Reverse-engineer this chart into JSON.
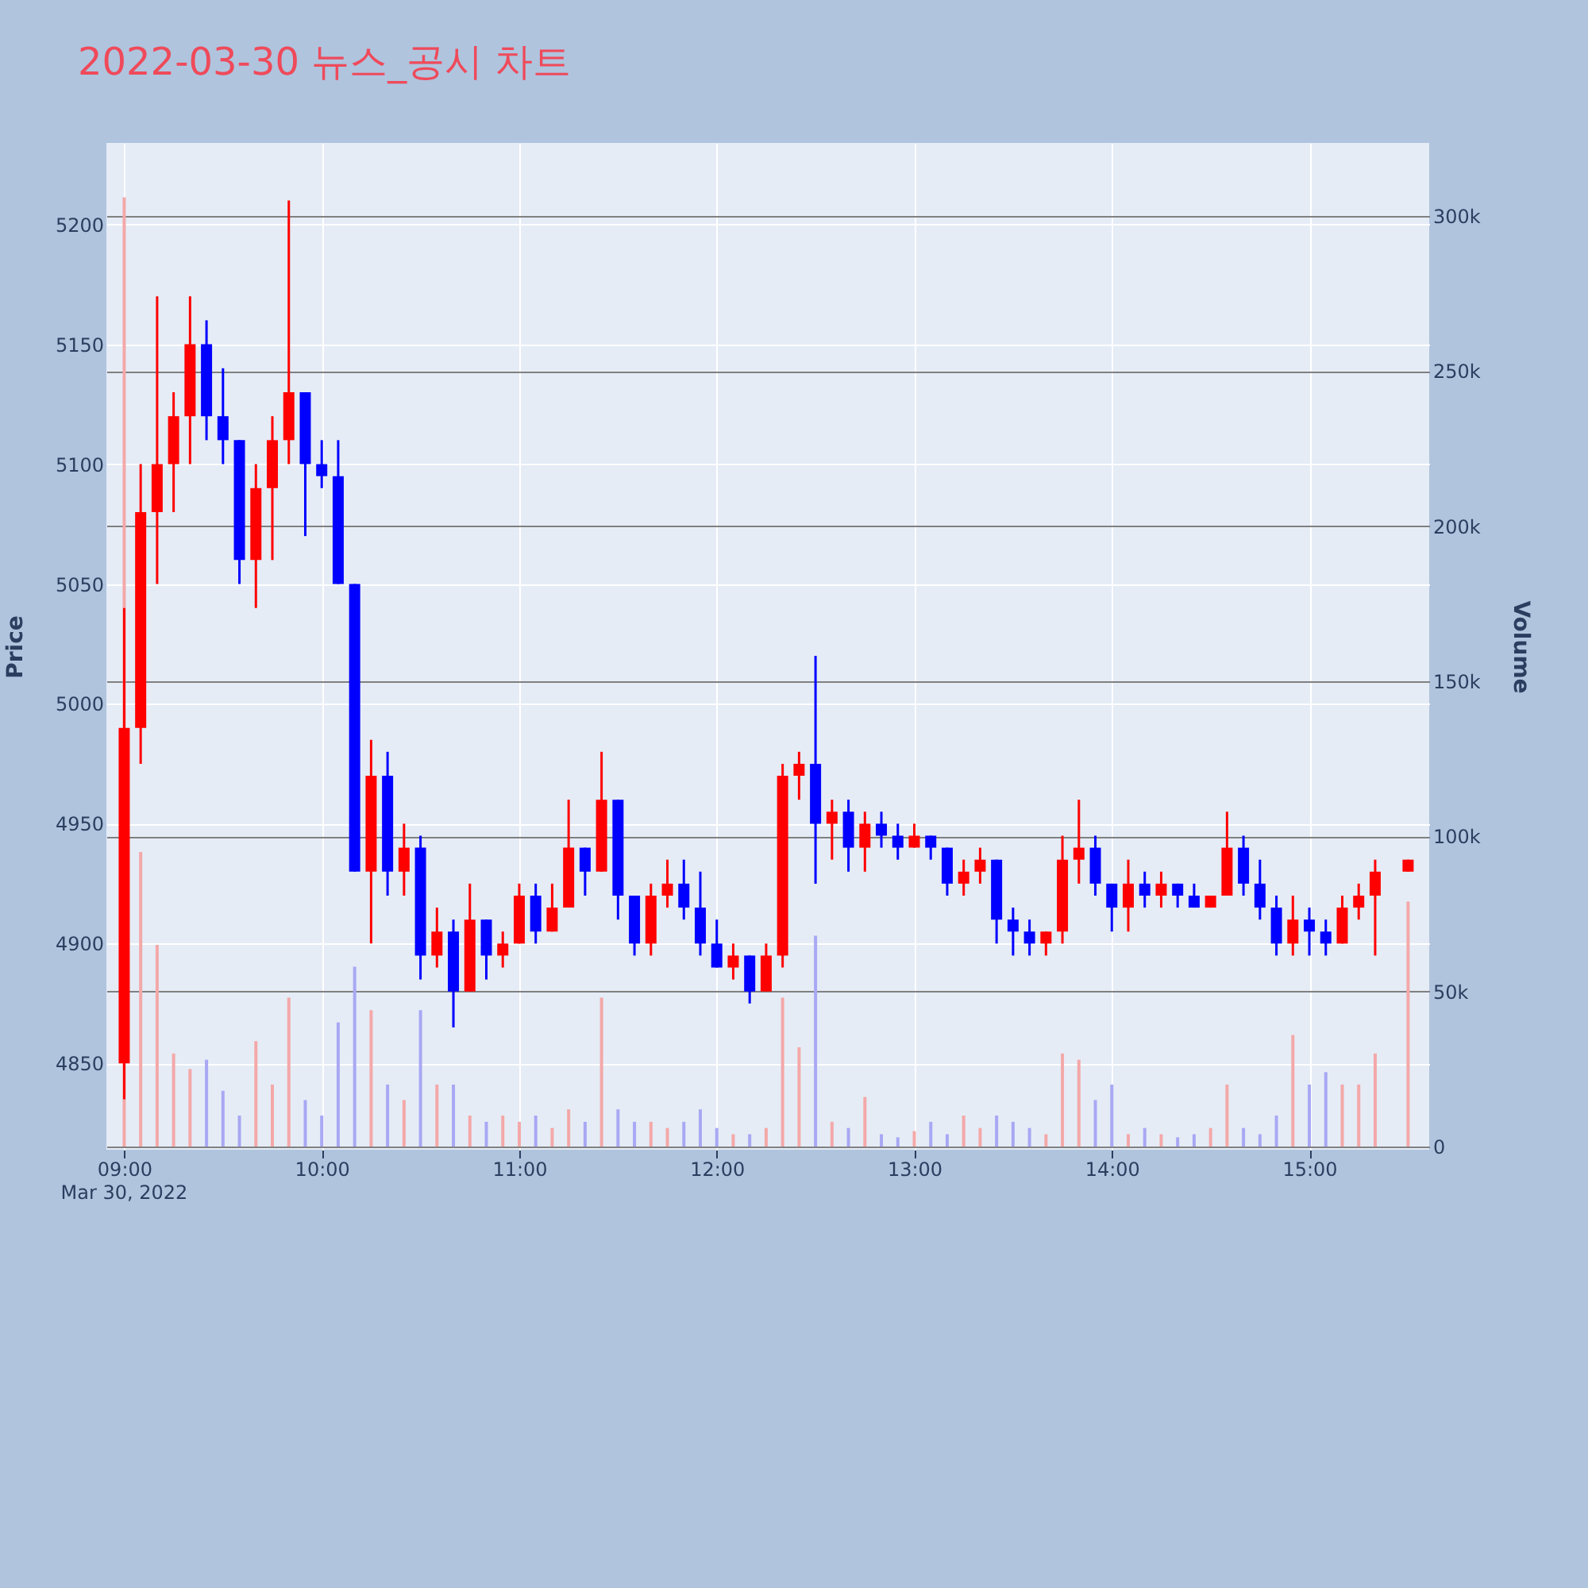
{
  "chart_data": {
    "type": "candlestick",
    "title": "2022-03-30 뉴스_공시 차트",
    "ylabel": "Price",
    "y2label": "Volume",
    "x": [
      "2022-03-30T09:00",
      "2022-03-30T09:05",
      "2022-03-30T09:10",
      "2022-03-30T09:15",
      "2022-03-30T09:20",
      "2022-03-30T09:25",
      "2022-03-30T09:30",
      "2022-03-30T09:35",
      "2022-03-30T09:40",
      "2022-03-30T09:45",
      "2022-03-30T09:50",
      "2022-03-30T09:55",
      "2022-03-30T10:00",
      "2022-03-30T10:05",
      "2022-03-30T10:10",
      "2022-03-30T10:15",
      "2022-03-30T10:20",
      "2022-03-30T10:25",
      "2022-03-30T10:30",
      "2022-03-30T10:35",
      "2022-03-30T10:40",
      "2022-03-30T10:45",
      "2022-03-30T10:50",
      "2022-03-30T10:55",
      "2022-03-30T11:00",
      "2022-03-30T11:05",
      "2022-03-30T11:10",
      "2022-03-30T11:15",
      "2022-03-30T11:20",
      "2022-03-30T11:25",
      "2022-03-30T11:30",
      "2022-03-30T11:35",
      "2022-03-30T11:40",
      "2022-03-30T11:45",
      "2022-03-30T11:50",
      "2022-03-30T11:55",
      "2022-03-30T12:00",
      "2022-03-30T12:05",
      "2022-03-30T12:10",
      "2022-03-30T12:15",
      "2022-03-30T12:20",
      "2022-03-30T12:25",
      "2022-03-30T12:30",
      "2022-03-30T12:35",
      "2022-03-30T12:40",
      "2022-03-30T12:45",
      "2022-03-30T12:50",
      "2022-03-30T12:55",
      "2022-03-30T13:00",
      "2022-03-30T13:05",
      "2022-03-30T13:10",
      "2022-03-30T13:15",
      "2022-03-30T13:20",
      "2022-03-30T13:25",
      "2022-03-30T13:30",
      "2022-03-30T13:35",
      "2022-03-30T13:40",
      "2022-03-30T13:45",
      "2022-03-30T13:50",
      "2022-03-30T13:55",
      "2022-03-30T14:00",
      "2022-03-30T14:05",
      "2022-03-30T14:10",
      "2022-03-30T14:15",
      "2022-03-30T14:20",
      "2022-03-30T14:25",
      "2022-03-30T14:30",
      "2022-03-30T14:35",
      "2022-03-30T14:40",
      "2022-03-30T14:45",
      "2022-03-30T14:50",
      "2022-03-30T14:55",
      "2022-03-30T15:00",
      "2022-03-30T15:05",
      "2022-03-30T15:10",
      "2022-03-30T15:15",
      "2022-03-30T15:20",
      "2022-03-30T15:30"
    ],
    "ohlc": [
      [
        4850,
        5040,
        4835,
        4990
      ],
      [
        4990,
        5100,
        4975,
        5080
      ],
      [
        5080,
        5170,
        5050,
        5100
      ],
      [
        5100,
        5130,
        5080,
        5120
      ],
      [
        5120,
        5170,
        5100,
        5150
      ],
      [
        5150,
        5160,
        5110,
        5120
      ],
      [
        5120,
        5140,
        5100,
        5110
      ],
      [
        5110,
        5110,
        5050,
        5060
      ],
      [
        5060,
        5100,
        5040,
        5090
      ],
      [
        5090,
        5120,
        5060,
        5110
      ],
      [
        5110,
        5210,
        5100,
        5130
      ],
      [
        5130,
        5130,
        5070,
        5100
      ],
      [
        5100,
        5110,
        5090,
        5095
      ],
      [
        5095,
        5110,
        5050,
        5050
      ],
      [
        5050,
        5050,
        4930,
        4930
      ],
      [
        4930,
        4985,
        4900,
        4970
      ],
      [
        4970,
        4980,
        4920,
        4930
      ],
      [
        4930,
        4950,
        4920,
        4940
      ],
      [
        4940,
        4945,
        4885,
        4895
      ],
      [
        4895,
        4915,
        4890,
        4905
      ],
      [
        4905,
        4910,
        4865,
        4880
      ],
      [
        4880,
        4925,
        4880,
        4910
      ],
      [
        4910,
        4910,
        4885,
        4895
      ],
      [
        4895,
        4905,
        4890,
        4900
      ],
      [
        4900,
        4925,
        4900,
        4920
      ],
      [
        4920,
        4925,
        4900,
        4905
      ],
      [
        4905,
        4925,
        4905,
        4915
      ],
      [
        4915,
        4960,
        4915,
        4940
      ],
      [
        4940,
        4940,
        4920,
        4930
      ],
      [
        4930,
        4980,
        4930,
        4960
      ],
      [
        4960,
        4960,
        4910,
        4920
      ],
      [
        4920,
        4920,
        4895,
        4900
      ],
      [
        4900,
        4925,
        4895,
        4920
      ],
      [
        4920,
        4935,
        4915,
        4925
      ],
      [
        4925,
        4935,
        4910,
        4915
      ],
      [
        4915,
        4930,
        4895,
        4900
      ],
      [
        4900,
        4910,
        4890,
        4890
      ],
      [
        4890,
        4900,
        4885,
        4895
      ],
      [
        4895,
        4895,
        4875,
        4880
      ],
      [
        4880,
        4900,
        4880,
        4895
      ],
      [
        4895,
        4975,
        4890,
        4970
      ],
      [
        4970,
        4980,
        4960,
        4975
      ],
      [
        4975,
        5020,
        4925,
        4950
      ],
      [
        4950,
        4960,
        4935,
        4955
      ],
      [
        4955,
        4960,
        4930,
        4940
      ],
      [
        4940,
        4955,
        4930,
        4950
      ],
      [
        4950,
        4955,
        4940,
        4945
      ],
      [
        4945,
        4950,
        4935,
        4940
      ],
      [
        4940,
        4950,
        4940,
        4945
      ],
      [
        4945,
        4945,
        4935,
        4940
      ],
      [
        4940,
        4940,
        4920,
        4925
      ],
      [
        4925,
        4935,
        4920,
        4930
      ],
      [
        4930,
        4940,
        4925,
        4935
      ],
      [
        4935,
        4935,
        4900,
        4910
      ],
      [
        4910,
        4915,
        4895,
        4905
      ],
      [
        4905,
        4910,
        4895,
        4900
      ],
      [
        4900,
        4905,
        4895,
        4905
      ],
      [
        4905,
        4945,
        4900,
        4935
      ],
      [
        4935,
        4960,
        4925,
        4940
      ],
      [
        4940,
        4945,
        4920,
        4925
      ],
      [
        4925,
        4925,
        4905,
        4915
      ],
      [
        4915,
        4935,
        4905,
        4925
      ],
      [
        4925,
        4930,
        4915,
        4920
      ],
      [
        4920,
        4930,
        4915,
        4925
      ],
      [
        4925,
        4925,
        4915,
        4920
      ],
      [
        4920,
        4925,
        4915,
        4915
      ],
      [
        4915,
        4920,
        4915,
        4920
      ],
      [
        4920,
        4955,
        4920,
        4940
      ],
      [
        4940,
        4945,
        4920,
        4925
      ],
      [
        4925,
        4935,
        4910,
        4915
      ],
      [
        4915,
        4920,
        4895,
        4900
      ],
      [
        4900,
        4920,
        4895,
        4910
      ],
      [
        4910,
        4915,
        4895,
        4905
      ],
      [
        4905,
        4910,
        4895,
        4900
      ],
      [
        4900,
        4920,
        4900,
        4915
      ],
      [
        4915,
        4925,
        4910,
        4920
      ],
      [
        4920,
        4935,
        4895,
        4930
      ],
      [
        4930,
        4935,
        4930,
        4935
      ]
    ],
    "colors": [
      "#ff0000",
      "#ff0000",
      "#ff0000",
      "#ff0000",
      "#ff0000",
      "#0000ff",
      "#0000ff",
      "#0000ff",
      "#ff0000",
      "#ff0000",
      "#ff0000",
      "#0000ff",
      "#0000ff",
      "#0000ff",
      "#0000ff",
      "#ff0000",
      "#0000ff",
      "#ff0000",
      "#0000ff",
      "#ff0000",
      "#0000ff",
      "#ff0000",
      "#0000ff",
      "#ff0000",
      "#ff0000",
      "#0000ff",
      "#ff0000",
      "#ff0000",
      "#0000ff",
      "#ff0000",
      "#0000ff",
      "#0000ff",
      "#ff0000",
      "#ff0000",
      "#0000ff",
      "#0000ff",
      "#0000ff",
      "#ff0000",
      "#0000ff",
      "#ff0000",
      "#ff0000",
      "#ff0000",
      "#0000ff",
      "#ff0000",
      "#0000ff",
      "#ff0000",
      "#0000ff",
      "#0000ff",
      "#ff0000",
      "#0000ff",
      "#0000ff",
      "#ff0000",
      "#ff0000",
      "#0000ff",
      "#0000ff",
      "#0000ff",
      "#ff0000",
      "#ff0000",
      "#ff0000",
      "#0000ff",
      "#0000ff",
      "#ff0000",
      "#0000ff",
      "#ff0000",
      "#0000ff",
      "#0000ff",
      "#ff0000",
      "#ff0000",
      "#0000ff",
      "#0000ff",
      "#0000ff",
      "#ff0000",
      "#0000ff",
      "#0000ff",
      "#ff0000",
      "#ff0000",
      "#ff0000",
      "#ff0000"
    ],
    "series": [
      {
        "type": "bar",
        "axis": "y2",
        "values": [
          306000,
          95000,
          65000,
          30000,
          25000,
          28000,
          18000,
          10000,
          34000,
          20000,
          48000,
          15000,
          10000,
          40000,
          58000,
          44000,
          20000,
          15000,
          44000,
          20000,
          20000,
          10000,
          8000,
          10000,
          8000,
          10000,
          6000,
          12000,
          8000,
          48000,
          12000,
          8000,
          8000,
          6000,
          8000,
          12000,
          6000,
          4000,
          4000,
          6000,
          48000,
          32000,
          68000,
          8000,
          6000,
          16000,
          4000,
          3000,
          5000,
          8000,
          4000,
          10000,
          6000,
          10000,
          8000,
          6000,
          4000,
          30000,
          28000,
          15000,
          20000,
          4000,
          6000,
          4000,
          3000,
          4000,
          6000,
          20000,
          6000,
          4000,
          10000,
          36000,
          20000,
          24000,
          20000,
          20000,
          30000,
          79000
        ],
        "colors": [
          "#f4a8a8",
          "#f4a8a8",
          "#f4a8a8",
          "#f4a8a8",
          "#f4a8a8",
          "#a8a8f4",
          "#a8a8f4",
          "#a8a8f4",
          "#f4a8a8",
          "#f4a8a8",
          "#f4a8a8",
          "#a8a8f4",
          "#a8a8f4",
          "#a8a8f4",
          "#a8a8f4",
          "#f4a8a8",
          "#a8a8f4",
          "#f4a8a8",
          "#a8a8f4",
          "#f4a8a8",
          "#a8a8f4",
          "#f4a8a8",
          "#a8a8f4",
          "#f4a8a8",
          "#f4a8a8",
          "#a8a8f4",
          "#f4a8a8",
          "#f4a8a8",
          "#a8a8f4",
          "#f4a8a8",
          "#a8a8f4",
          "#a8a8f4",
          "#f4a8a8",
          "#f4a8a8",
          "#a8a8f4",
          "#a8a8f4",
          "#a8a8f4",
          "#f4a8a8",
          "#a8a8f4",
          "#f4a8a8",
          "#f4a8a8",
          "#f4a8a8",
          "#a8a8f4",
          "#f4a8a8",
          "#a8a8f4",
          "#f4a8a8",
          "#a8a8f4",
          "#a8a8f4",
          "#f4a8a8",
          "#a8a8f4",
          "#a8a8f4",
          "#f4a8a8",
          "#f4a8a8",
          "#a8a8f4",
          "#a8a8f4",
          "#a8a8f4",
          "#f4a8a8",
          "#f4a8a8",
          "#f4a8a8",
          "#a8a8f4",
          "#a8a8f4",
          "#f4a8a8",
          "#a8a8f4",
          "#f4a8a8",
          "#a8a8f4",
          "#a8a8f4",
          "#f4a8a8",
          "#f4a8a8",
          "#a8a8f4",
          "#a8a8f4",
          "#a8a8f4",
          "#f4a8a8",
          "#a8a8f4",
          "#a8a8f4",
          "#f4a8a8",
          "#f4a8a8",
          "#f4a8a8",
          "#f4a8a8"
        ]
      }
    ],
    "xlim": [
      "2022-03-30T08:57",
      "2022-03-30T15:34"
    ],
    "xticks": [
      {
        "value": "2022-03-30T09:00",
        "label": "09:00"
      },
      {
        "value": "2022-03-30T10:00",
        "label": "10:00"
      },
      {
        "value": "2022-03-30T11:00",
        "label": "11:00"
      },
      {
        "value": "2022-03-30T12:00",
        "label": "12:00"
      },
      {
        "value": "2022-03-30T13:00",
        "label": "13:00"
      },
      {
        "value": "2022-03-30T14:00",
        "label": "14:00"
      },
      {
        "value": "2022-03-30T15:00",
        "label": "15:00"
      }
    ],
    "ylim": [
      4814,
      5234
    ],
    "yticks": [
      4850,
      4900,
      4950,
      5000,
      5050,
      5100,
      5150,
      5200
    ],
    "y2lim": [
      -1000,
      323500
    ],
    "y2ticks": [
      0,
      {
        "value": 50000,
        "label": "50k"
      },
      {
        "value": 100000,
        "label": "100k"
      },
      {
        "value": 150000,
        "label": "150k"
      },
      {
        "value": 200000,
        "label": "200k"
      },
      {
        "value": 250000,
        "label": "250k"
      },
      {
        "value": 300000,
        "label": "300k"
      }
    ],
    "grid": true,
    "annotations": [
      "Mar 30, 2022"
    ]
  }
}
